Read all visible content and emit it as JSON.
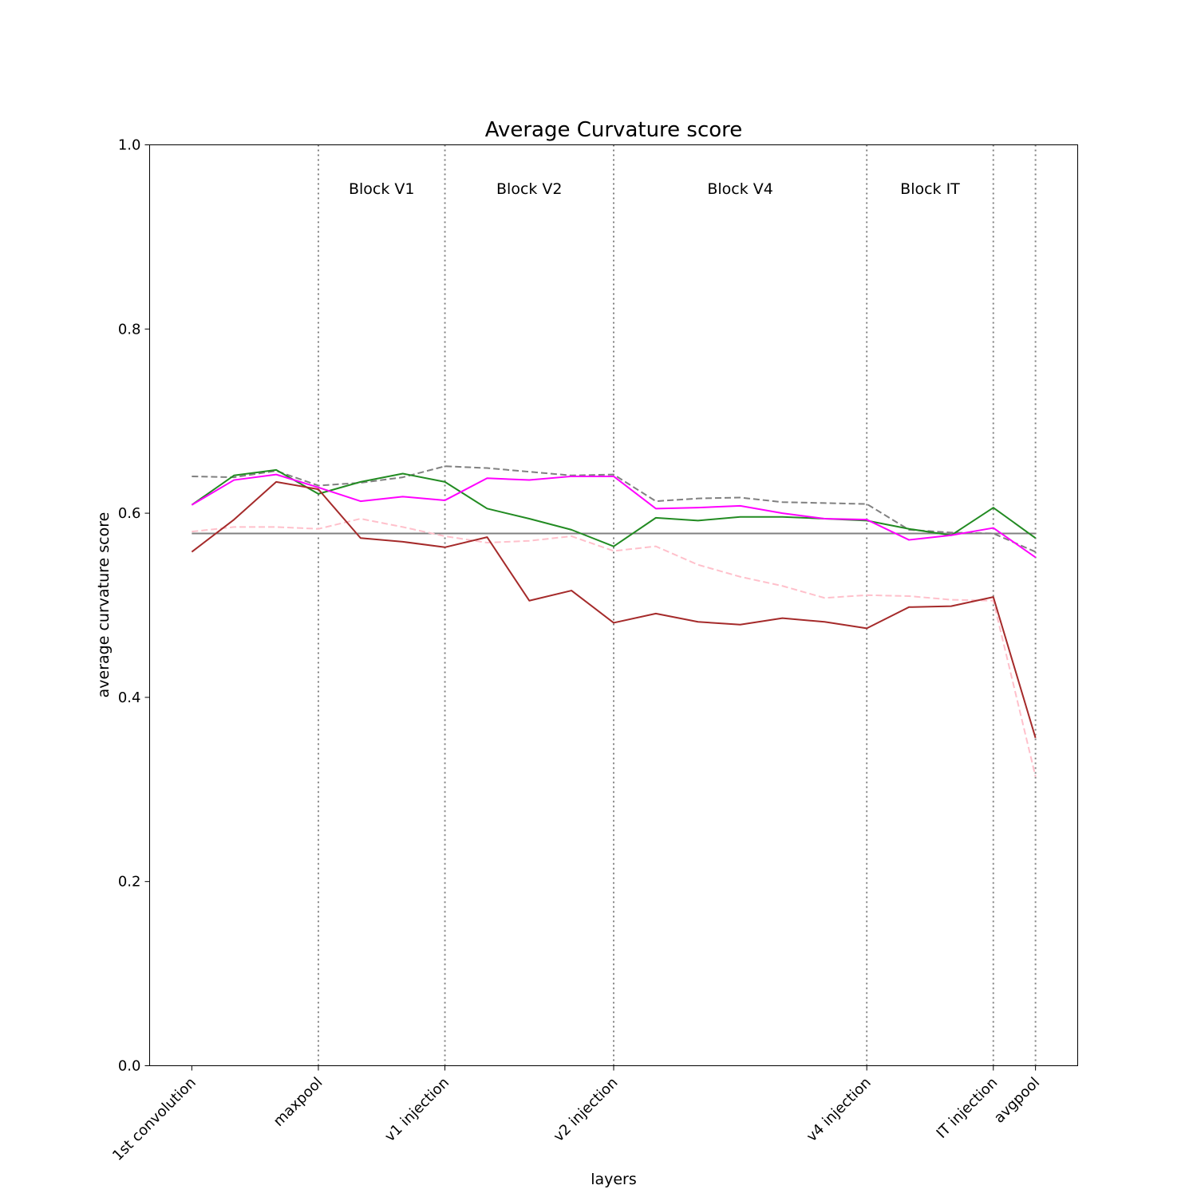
{
  "chart_data": {
    "type": "line",
    "title": "Average Curvature score",
    "xlabel": "layers",
    "ylabel": "average curvature score",
    "ylim": [
      0,
      1
    ],
    "yticks": [
      0.0,
      0.2,
      0.4,
      0.6,
      0.8,
      1.0
    ],
    "ytick_labels": [
      "0.0",
      "0.2",
      "0.4",
      "0.6",
      "0.8",
      "1.0"
    ],
    "xlim": [
      -1,
      21
    ],
    "xticks": [
      {
        "x": 0,
        "label": "1st convolution"
      },
      {
        "x": 3,
        "label": "maxpool"
      },
      {
        "x": 6,
        "label": "v1 injection"
      },
      {
        "x": 10,
        "label": "v2 injection"
      },
      {
        "x": 16,
        "label": "v4 injection"
      },
      {
        "x": 19,
        "label": "IT injection"
      },
      {
        "x": 20,
        "label": "avgpool"
      }
    ],
    "vlines": [
      3,
      6,
      10,
      16,
      19,
      20
    ],
    "blocks": [
      {
        "label": "Block V1",
        "x": 4.5
      },
      {
        "label": "Block V2",
        "x": 8
      },
      {
        "label": "Block V4",
        "x": 13
      },
      {
        "label": "Block IT",
        "x": 17.5
      }
    ],
    "hline": {
      "y": 0.578,
      "color": "#808080"
    },
    "grid": false,
    "legend": "none",
    "x": [
      0,
      1,
      2,
      3,
      4,
      5,
      6,
      7,
      8,
      9,
      10,
      11,
      12,
      13,
      14,
      15,
      16,
      17,
      18,
      19,
      20
    ],
    "series": [
      {
        "color": "#808080",
        "style": "dashed",
        "values": [
          0.64,
          0.639,
          0.646,
          0.63,
          0.633,
          0.639,
          0.651,
          0.649,
          0.645,
          0.641,
          0.642,
          0.613,
          0.616,
          0.617,
          0.612,
          0.611,
          0.61,
          0.582,
          0.579,
          0.578,
          0.558
        ]
      },
      {
        "color": "#228b22",
        "style": "solid",
        "values": [
          0.609,
          0.641,
          0.647,
          0.621,
          0.634,
          0.643,
          0.634,
          0.605,
          0.594,
          0.582,
          0.564,
          0.595,
          0.592,
          0.596,
          0.596,
          0.594,
          0.592,
          0.583,
          0.576,
          0.606,
          0.573
        ]
      },
      {
        "color": "#ff00ff",
        "style": "solid",
        "values": [
          0.609,
          0.636,
          0.642,
          0.628,
          0.613,
          0.618,
          0.614,
          0.638,
          0.636,
          0.64,
          0.64,
          0.605,
          0.606,
          0.608,
          0.6,
          0.594,
          0.593,
          0.571,
          0.576,
          0.584,
          0.552
        ]
      },
      {
        "color": "#ffc0cb",
        "style": "dashed",
        "values": [
          0.58,
          0.585,
          0.585,
          0.583,
          0.594,
          0.585,
          0.575,
          0.568,
          0.57,
          0.575,
          0.559,
          0.564,
          0.544,
          0.531,
          0.521,
          0.508,
          0.511,
          0.51,
          0.506,
          0.505,
          0.314
        ]
      },
      {
        "color": "#a52a2a",
        "style": "solid",
        "values": [
          0.558,
          0.593,
          0.634,
          0.626,
          0.573,
          0.569,
          0.563,
          0.574,
          0.505,
          0.516,
          0.481,
          0.491,
          0.482,
          0.479,
          0.486,
          0.482,
          0.475,
          0.498,
          0.499,
          0.509,
          0.356
        ]
      }
    ]
  }
}
